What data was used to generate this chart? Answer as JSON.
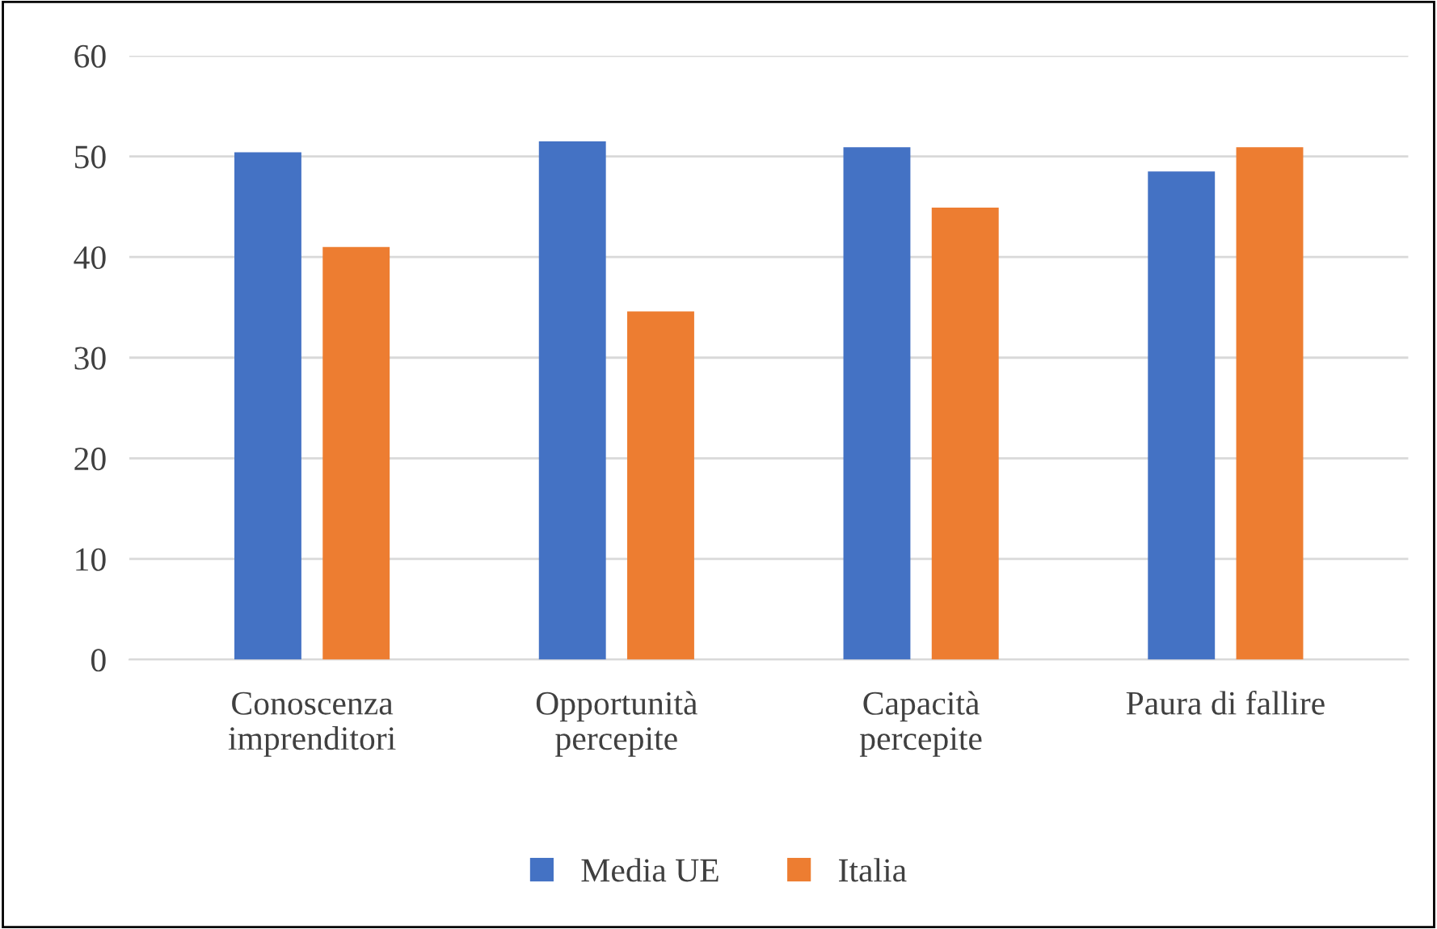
{
  "chart_data": {
    "type": "bar",
    "categories": [
      "Conoscenza\nimprenditori",
      "Opportunità\npercepite",
      "Capacità\npercepite",
      "Paura di fallire"
    ],
    "series": [
      {
        "name": "Media UE",
        "color": "#4472c4",
        "values": [
          50.4,
          51.5,
          50.9,
          48.5
        ]
      },
      {
        "name": "Italia",
        "color": "#ed7d31",
        "values": [
          41.0,
          34.6,
          44.9,
          50.9
        ]
      }
    ],
    "ylim": [
      0,
      60
    ],
    "yticks": [
      0,
      10,
      20,
      30,
      40,
      50,
      60
    ],
    "grid": "y",
    "legend": "bottom"
  }
}
